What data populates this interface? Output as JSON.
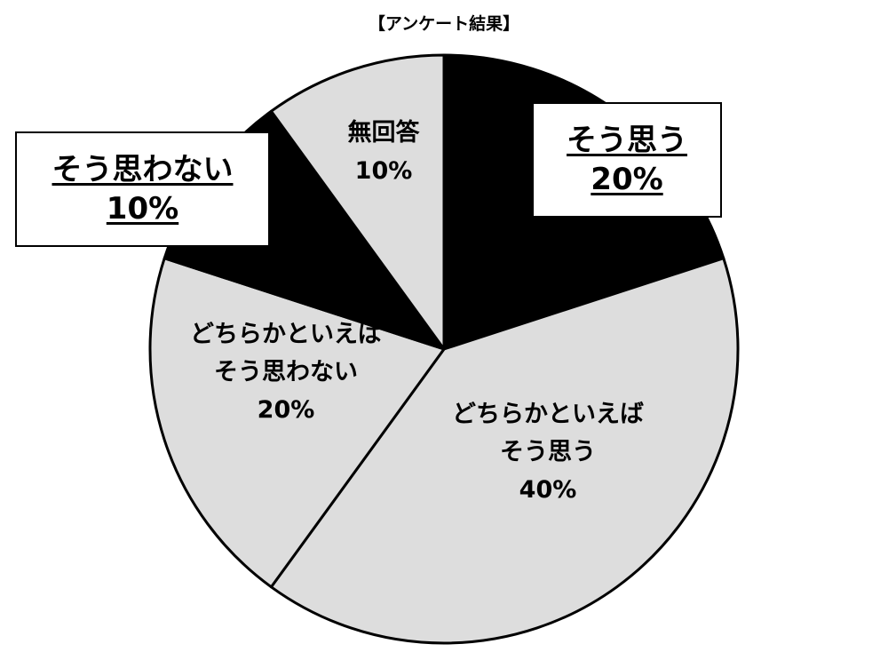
{
  "chart_data": {
    "type": "pie",
    "title": "【アンケート結果】",
    "slices": [
      {
        "key": "agree",
        "label": "そう思う",
        "value": 20,
        "display": "20%",
        "color": "#000000",
        "label_lines": [
          "そう思う",
          "20%"
        ],
        "callout": true
      },
      {
        "key": "somewhat_agree",
        "label": "どちらかといえばそう思う",
        "value": 40,
        "display": "40%",
        "color": "#dddddd",
        "label_lines": [
          "どちらかといえば",
          "そう思う",
          "40%"
        ],
        "callout": false
      },
      {
        "key": "somewhat_disagree",
        "label": "どちらかといえばそう思わない",
        "value": 20,
        "display": "20%",
        "color": "#dddddd",
        "label_lines": [
          "どちらかといえば",
          "そう思わない",
          "20%"
        ],
        "callout": false
      },
      {
        "key": "disagree",
        "label": "そう思わない",
        "value": 10,
        "display": "10%",
        "color": "#000000",
        "label_lines": [
          "そう思わない",
          "10%"
        ],
        "callout": true
      },
      {
        "key": "no_answer",
        "label": "無回答",
        "value": 10,
        "display": "10%",
        "color": "#dddddd",
        "label_lines": [
          "無回答",
          "10%"
        ],
        "callout": false
      }
    ],
    "start_angle_deg": 0,
    "direction": "clockwise",
    "outline_color": "#000000"
  }
}
